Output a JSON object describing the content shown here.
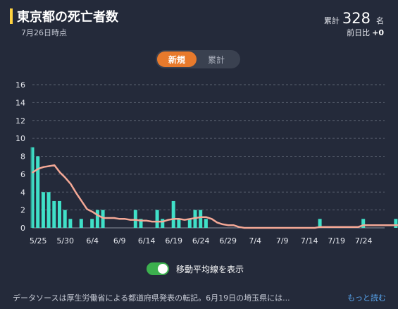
{
  "header": {
    "title": "東京都の死亡者数",
    "date": "7月26日時点",
    "total_label": "累計",
    "total_value": "328",
    "total_unit": "名",
    "diff_label": "前日比",
    "diff_value": "+0"
  },
  "tabs": [
    {
      "label": "新規",
      "active": true
    },
    {
      "label": "累計",
      "active": false
    }
  ],
  "toggle": {
    "label": "移動平均線を表示",
    "on": true
  },
  "footer": {
    "note": "データソースは厚生労働省による都道府県発表の転記。6月19日の埼玉県には...",
    "read_more": "もっと読む"
  },
  "colors": {
    "bar": "#40e0c8",
    "line": "#f4a896",
    "accent": "#ffd23f",
    "tab_active": "#e87a2c",
    "toggle": "#3cb04e",
    "link": "#58a6f0"
  },
  "chart_data": {
    "type": "bar",
    "start_date": "2021-05-24",
    "x_tick_labels": [
      "5/25",
      "5/30",
      "6/4",
      "6/9",
      "6/14",
      "6/19",
      "6/24",
      "6/29",
      "7/4",
      "7/9",
      "7/14",
      "7/19",
      "7/24"
    ],
    "y_tick_labels": [
      "0",
      "2",
      "4",
      "6",
      "8",
      "10",
      "12",
      "14",
      "16"
    ],
    "ylim": [
      0,
      16
    ],
    "grid": true,
    "series": [
      {
        "type": "bar",
        "values": [
          9,
          8,
          4,
          4,
          3,
          3,
          2,
          1,
          0,
          1,
          0,
          1,
          2,
          2,
          0,
          0,
          0,
          0,
          0,
          2,
          1,
          0,
          0,
          2,
          1,
          0,
          3,
          1,
          0,
          1,
          2,
          2,
          1,
          0,
          0,
          0,
          0,
          0,
          0,
          0,
          0,
          0,
          0,
          0,
          0,
          0,
          0,
          0,
          0,
          0,
          0,
          0,
          0,
          1,
          0,
          0,
          0,
          0,
          0,
          0,
          0,
          1,
          0,
          0,
          0,
          0,
          0,
          1,
          0
        ]
      },
      {
        "type": "line",
        "values": [
          6.2,
          6.6,
          6.8,
          6.9,
          7.0,
          6.2,
          5.6,
          4.9,
          3.9,
          3.0,
          2.1,
          1.8,
          1.4,
          1.1,
          1.1,
          1.1,
          1.0,
          1.0,
          0.9,
          0.9,
          0.8,
          0.8,
          0.7,
          0.7,
          0.7,
          0.9,
          1.0,
          1.0,
          0.9,
          1.0,
          1.1,
          1.2,
          1.2,
          1.0,
          0.6,
          0.4,
          0.3,
          0.3,
          0.1,
          0.0,
          0.0,
          0.0,
          0.0,
          0.0,
          0.0,
          0.0,
          0.0,
          0.0,
          0.0,
          0.0,
          0.0,
          0.0,
          0.0,
          0.1,
          0.1,
          0.1,
          0.1,
          0.1,
          0.1,
          0.1,
          0.1,
          0.3,
          0.3,
          0.3,
          0.3,
          0.3,
          0.3,
          0.3,
          0.3
        ]
      }
    ]
  }
}
